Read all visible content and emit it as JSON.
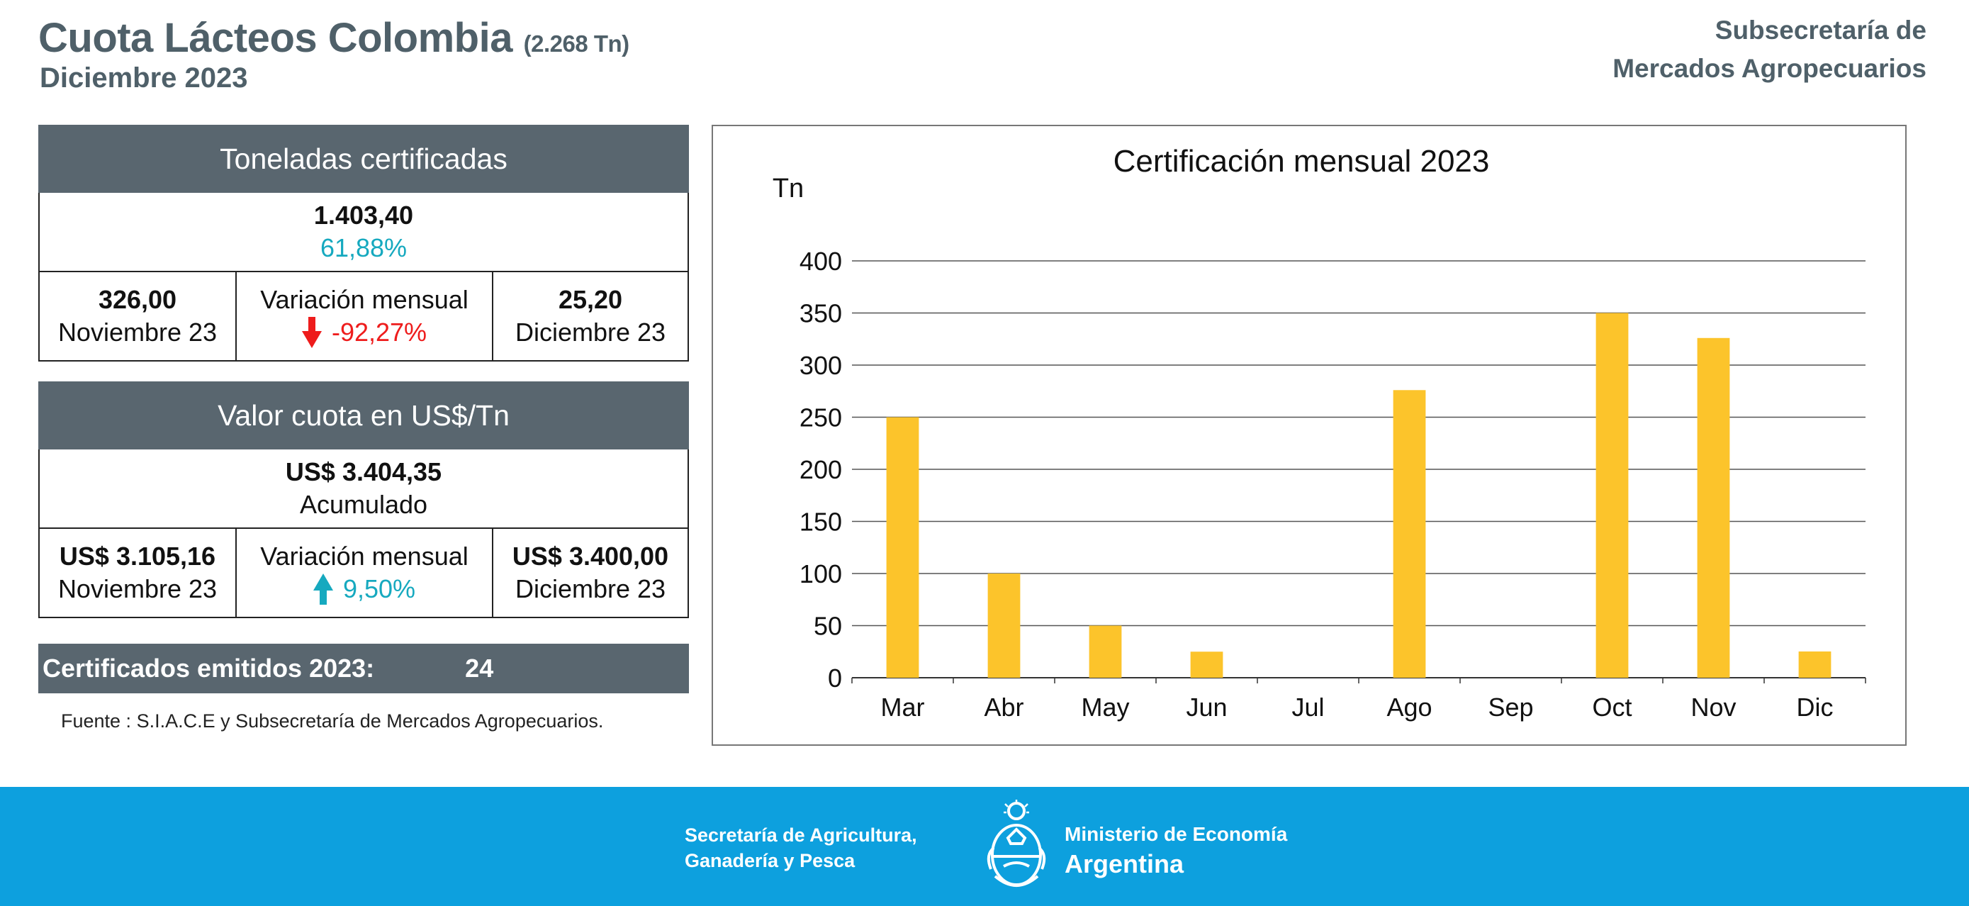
{
  "header": {
    "title": "Cuota Lácteos Colombia",
    "title_note": "(2.268 Tn)",
    "period": "Diciembre 2023",
    "org_line1": "Subsecretaría de",
    "org_line2": "Mercados Agropecuarios"
  },
  "toneladas": {
    "heading": "Toneladas certificadas",
    "total": "1.403,40",
    "percent": "61,88%",
    "prev_value": "326,00",
    "prev_label": "Noviembre 23",
    "variation_label": "Variación mensual",
    "variation_value": "-92,27%",
    "variation_direction": "down",
    "curr_value": "25,20",
    "curr_label": "Diciembre 23"
  },
  "valor": {
    "heading": "Valor cuota en US$/Tn",
    "total": "US$ 3.404,35",
    "total_label": "Acumulado",
    "prev_value": "US$ 3.105,16",
    "prev_label": "Noviembre 23",
    "variation_label": "Variación mensual",
    "variation_value": "9,50%",
    "variation_direction": "up",
    "curr_value": "US$ 3.400,00",
    "curr_label": "Diciembre 23"
  },
  "certificados": {
    "label": "Certificados emitidos  2023:",
    "count": "24"
  },
  "source": "Fuente : S.I.A.C.E y Subsecretaría de Mercados Agropecuarios.",
  "colors": {
    "panel_header": "#59666f",
    "bar": "#fcc42b",
    "teal": "#16a9bf",
    "red": "#ee1c1c",
    "footer": "#0da0de",
    "title": "#4f6069"
  },
  "chart_data": {
    "type": "bar",
    "title": "Certificación mensual 2023",
    "ylabel": "Tn",
    "xlabel": "",
    "categories": [
      "Mar",
      "Abr",
      "May",
      "Jun",
      "Jul",
      "Ago",
      "Sep",
      "Oct",
      "Nov",
      "Dic"
    ],
    "values": [
      250,
      100,
      50,
      25,
      0,
      276,
      0,
      350,
      326,
      25.2
    ],
    "ylim": [
      0,
      400
    ],
    "yticks": [
      0,
      50,
      100,
      150,
      200,
      250,
      300,
      350,
      400
    ],
    "grid": true
  },
  "footer": {
    "left_line1": "Secretaría de Agricultura,",
    "left_line2": "Ganadería y Pesca",
    "right_line1": "Ministerio de Economía",
    "right_line2": "Argentina",
    "seal_icon": "argentina-coat-of-arms-icon"
  }
}
